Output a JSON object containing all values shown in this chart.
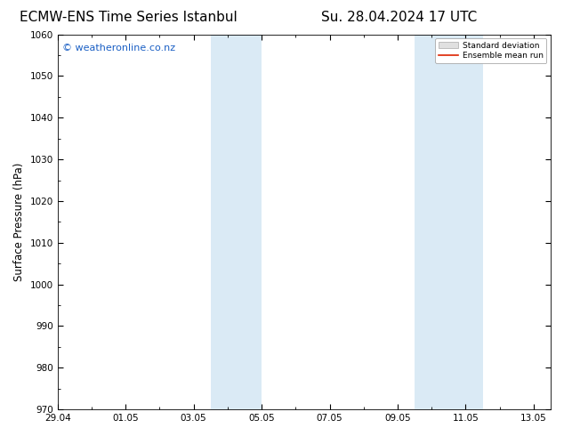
{
  "title_left": "ECMW-ENS Time Series Istanbul",
  "title_right": "Su. 28.04.2024 17 UTC",
  "ylabel": "Surface Pressure (hPa)",
  "ylim": [
    970,
    1060
  ],
  "yticks": [
    970,
    980,
    990,
    1000,
    1010,
    1020,
    1030,
    1040,
    1050,
    1060
  ],
  "xlim": [
    0.0,
    14.5
  ],
  "xtick_labels": [
    "29.04",
    "01.05",
    "03.05",
    "05.05",
    "07.05",
    "09.05",
    "11.05",
    "13.05"
  ],
  "xtick_positions": [
    0.0,
    2.0,
    4.0,
    6.0,
    8.0,
    10.0,
    12.0,
    14.0
  ],
  "shaded_regions": [
    {
      "xmin": 4.5,
      "xmax": 5.0,
      "color": "#daeaf5"
    },
    {
      "xmin": 5.0,
      "xmax": 6.0,
      "color": "#daeaf5"
    },
    {
      "xmin": 10.5,
      "xmax": 11.0,
      "color": "#daeaf5"
    },
    {
      "xmin": 11.0,
      "xmax": 12.5,
      "color": "#daeaf5"
    }
  ],
  "watermark_text": "© weatheronline.co.nz",
  "watermark_color": "#1a5fc4",
  "watermark_fontsize": 8,
  "legend_std_label": "Standard deviation",
  "legend_mean_label": "Ensemble mean run",
  "legend_std_facecolor": "#e0e0e0",
  "legend_std_edgecolor": "#aaaaaa",
  "legend_mean_color": "#dd2200",
  "background_color": "#ffffff",
  "axes_bg_color": "#ffffff",
  "title_fontsize": 11,
  "tick_fontsize": 7.5,
  "ylabel_fontsize": 8.5
}
